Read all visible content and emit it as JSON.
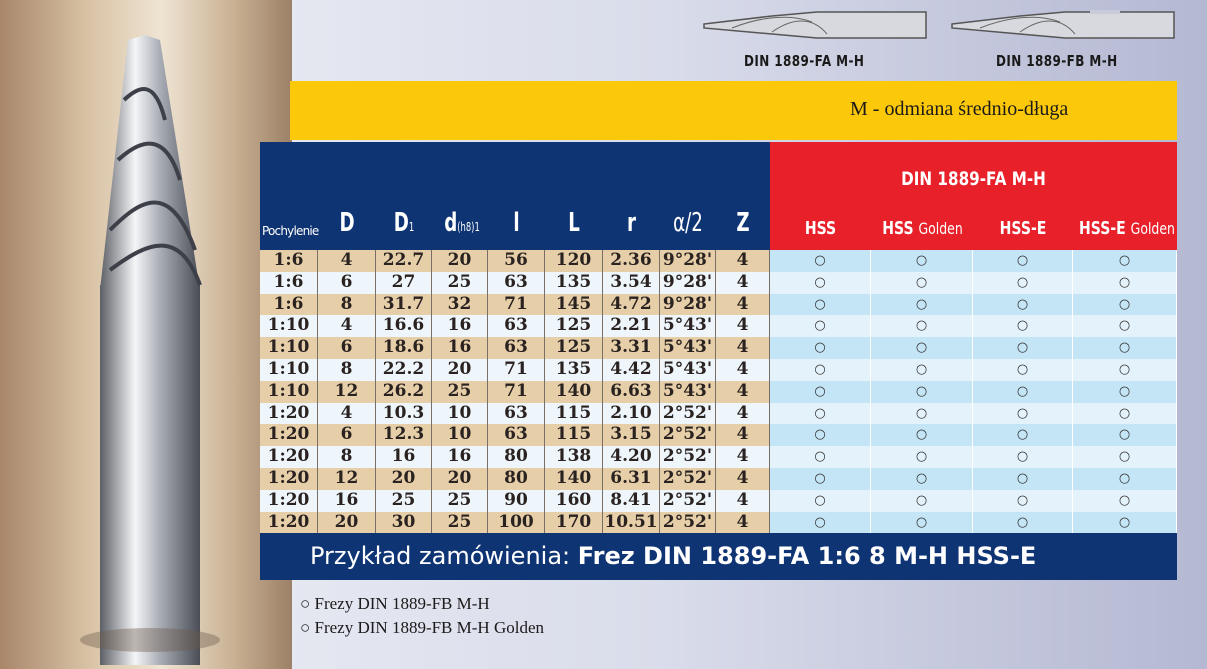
{
  "tools": [
    {
      "label": "DIN 1889-FA M-H"
    },
    {
      "label": "DIN 1889-FB M-H"
    }
  ],
  "band": {
    "text": "M - odmiana średnio-długa"
  },
  "headers": {
    "pochylenie": "Pochylenie",
    "D": "D",
    "D1": "D",
    "D1_sub": "1",
    "d": "d",
    "d_sub": "(h8)",
    "d_sup": "1",
    "l": "l",
    "L": "L",
    "r": "r",
    "alpha": "α/2",
    "Z": "Z"
  },
  "standard": "DIN 1889-FA M-H",
  "materials": [
    {
      "main": "HSS",
      "sub": ""
    },
    {
      "main": "HSS",
      "sub": "Golden"
    },
    {
      "main": "HSS-E",
      "sub": ""
    },
    {
      "main": "HSS-E",
      "sub": "Golden"
    }
  ],
  "rows": [
    [
      "1:6",
      "4",
      "22.7",
      "20",
      "56",
      "120",
      "2.36",
      "9°28'",
      "4"
    ],
    [
      "1:6",
      "6",
      "27",
      "25",
      "63",
      "135",
      "3.54",
      "9°28'",
      "4"
    ],
    [
      "1:6",
      "8",
      "31.7",
      "32",
      "71",
      "145",
      "4.72",
      "9°28'",
      "4"
    ],
    [
      "1:10",
      "4",
      "16.6",
      "16",
      "63",
      "125",
      "2.21",
      "5°43'",
      "4"
    ],
    [
      "1:10",
      "6",
      "18.6",
      "16",
      "63",
      "125",
      "3.31",
      "5°43'",
      "4"
    ],
    [
      "1:10",
      "8",
      "22.2",
      "20",
      "71",
      "135",
      "4.42",
      "5°43'",
      "4"
    ],
    [
      "1:10",
      "12",
      "26.2",
      "25",
      "71",
      "140",
      "6.63",
      "5°43'",
      "4"
    ],
    [
      "1:20",
      "4",
      "10.3",
      "10",
      "63",
      "115",
      "2.10",
      "2°52'",
      "4"
    ],
    [
      "1:20",
      "6",
      "12.3",
      "10",
      "63",
      "115",
      "3.15",
      "2°52'",
      "4"
    ],
    [
      "1:20",
      "8",
      "16",
      "16",
      "80",
      "138",
      "4.20",
      "2°52'",
      "4"
    ],
    [
      "1:20",
      "12",
      "20",
      "20",
      "80",
      "140",
      "6.31",
      "2°52'",
      "4"
    ],
    [
      "1:20",
      "16",
      "25",
      "25",
      "90",
      "160",
      "8.41",
      "2°52'",
      "4"
    ],
    [
      "1:20",
      "20",
      "30",
      "25",
      "100",
      "170",
      "10.51",
      "2°52'",
      "4"
    ]
  ],
  "availability_mark": "○",
  "footer": {
    "prefix": "Przykład zamówienia: ",
    "example": "Frez DIN 1889-FA 1:6 8 M-H HSS-E"
  },
  "legend": [
    "○ Frezy DIN 1889-FB M-H",
    "○ Frezy DIN 1889-FB M-H Golden"
  ],
  "colors": {
    "navy": "#0f3474",
    "red": "#e8202a",
    "yellow": "#fcc80a",
    "row_beige": "#e6cfa8",
    "row_light": "#eef6fb",
    "avail_blue": "#c3e5f6",
    "avail_light": "#e4f3fb"
  }
}
